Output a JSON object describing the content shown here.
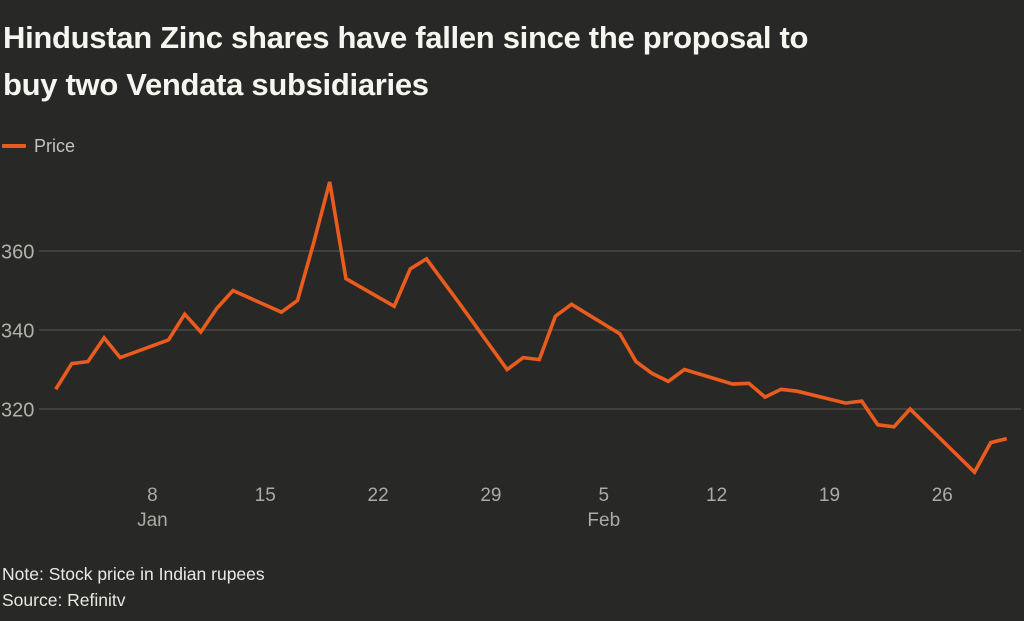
{
  "title": "Hindustan Zinc shares have fallen since the proposal to\nbuy two Vendata subsidiaries",
  "legend": {
    "label": "Price"
  },
  "note": "Note: Stock price in Indian rupees",
  "source": "Source: Refinitv",
  "colors": {
    "background": "#282826",
    "line": "#EA5B1E",
    "title_text": "#F6F6F1",
    "tick_text": "#ABABA5",
    "legend_text": "#C3C3BD",
    "note_text": "#EAE8E2",
    "gridline": "#4E4E4A"
  },
  "chart_data": {
    "type": "line",
    "title": "Hindustan Zinc shares have fallen since the proposal to buy two Vendata subsidiaries",
    "ylabel": "",
    "xlabel": "",
    "unit_note": "Stock price in Indian rupees",
    "source": "Refinitv",
    "legend_position": "top-left",
    "grid": true,
    "y_axis": {
      "tick_values": [
        320,
        340,
        360
      ],
      "ylim": [
        300,
        380
      ]
    },
    "x_axis": {
      "start_date": "Jan 2",
      "end_date": "Mar 2",
      "tick_labels": [
        {
          "label": "8",
          "day": 6
        },
        {
          "label": "15",
          "day": 13
        },
        {
          "label": "22",
          "day": 20
        },
        {
          "label": "29",
          "day": 27
        },
        {
          "label": "5",
          "day": 34
        },
        {
          "label": "12",
          "day": 41
        },
        {
          "label": "19",
          "day": 48
        },
        {
          "label": "26",
          "day": 55
        }
      ],
      "month_labels": [
        {
          "label": "Jan",
          "day": 6
        },
        {
          "label": "Feb",
          "day": 34
        }
      ]
    },
    "series": [
      {
        "name": "Price",
        "color": "#EA5B1E",
        "points": [
          {
            "date": "Jan 2",
            "day": 0,
            "value": 325
          },
          {
            "date": "Jan 3",
            "day": 1,
            "value": 331.5
          },
          {
            "date": "Jan 4",
            "day": 2,
            "value": 332
          },
          {
            "date": "Jan 5",
            "day": 3,
            "value": 338
          },
          {
            "date": "Jan 6",
            "day": 4,
            "value": 333
          },
          {
            "date": "Jan 9",
            "day": 7,
            "value": 337.5
          },
          {
            "date": "Jan 10",
            "day": 8,
            "value": 344
          },
          {
            "date": "Jan 11",
            "day": 9,
            "value": 339.5
          },
          {
            "date": "Jan 12",
            "day": 10,
            "value": 345.5
          },
          {
            "date": "Jan 13",
            "day": 11,
            "value": 350
          },
          {
            "date": "Jan 16",
            "day": 14,
            "value": 344.5
          },
          {
            "date": "Jan 17",
            "day": 15,
            "value": 347.5
          },
          {
            "date": "Jan 18",
            "day": 16,
            "value": 362
          },
          {
            "date": "Jan 19",
            "day": 17,
            "value": 377.5
          },
          {
            "date": "Jan 20",
            "day": 18,
            "value": 353
          },
          {
            "date": "Jan 23",
            "day": 21,
            "value": 346
          },
          {
            "date": "Jan 24",
            "day": 22,
            "value": 355.5
          },
          {
            "date": "Jan 25",
            "day": 23,
            "value": 358
          },
          {
            "date": "Jan 27",
            "day": 25,
            "value": 347
          },
          {
            "date": "Jan 30",
            "day": 28,
            "value": 330
          },
          {
            "date": "Jan 31",
            "day": 29,
            "value": 333
          },
          {
            "date": "Feb 1",
            "day": 30,
            "value": 332.5
          },
          {
            "date": "Feb 2",
            "day": 31,
            "value": 343.5
          },
          {
            "date": "Feb 3",
            "day": 32,
            "value": 346.5
          },
          {
            "date": "Feb 6",
            "day": 35,
            "value": 339
          },
          {
            "date": "Feb 7",
            "day": 36,
            "value": 332
          },
          {
            "date": "Feb 8",
            "day": 37,
            "value": 329
          },
          {
            "date": "Feb 9",
            "day": 38,
            "value": 327
          },
          {
            "date": "Feb 10",
            "day": 39,
            "value": 330
          },
          {
            "date": "Feb 13",
            "day": 42,
            "value": 326.3
          },
          {
            "date": "Feb 14",
            "day": 43,
            "value": 326.5
          },
          {
            "date": "Feb 15",
            "day": 44,
            "value": 323
          },
          {
            "date": "Feb 16",
            "day": 45,
            "value": 325
          },
          {
            "date": "Feb 17",
            "day": 46,
            "value": 324.5
          },
          {
            "date": "Feb 20",
            "day": 49,
            "value": 321.5
          },
          {
            "date": "Feb 21",
            "day": 50,
            "value": 322
          },
          {
            "date": "Feb 22",
            "day": 51,
            "value": 316
          },
          {
            "date": "Feb 23",
            "day": 52,
            "value": 315.5
          },
          {
            "date": "Feb 24",
            "day": 53,
            "value": 320
          },
          {
            "date": "Feb 27",
            "day": 56,
            "value": 308
          },
          {
            "date": "Feb 28",
            "day": 57,
            "value": 304
          },
          {
            "date": "Mar 1",
            "day": 58,
            "value": 311.5
          },
          {
            "date": "Mar 2",
            "day": 59,
            "value": 312.5
          }
        ]
      }
    ]
  }
}
